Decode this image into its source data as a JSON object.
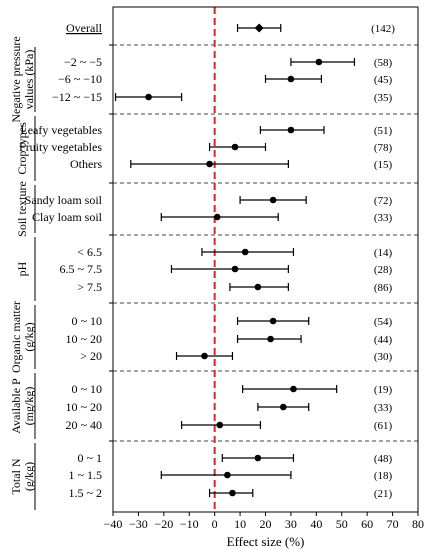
{
  "chart_data": {
    "type": "scatter",
    "subtype": "forest-plot",
    "xlabel": "Effect size (%)",
    "xlim": [
      -40,
      80
    ],
    "xticks": [
      -40,
      -30,
      -20,
      -10,
      0,
      10,
      20,
      30,
      40,
      50,
      60,
      70,
      80
    ],
    "reference_line": {
      "x": 0,
      "style": "dashed",
      "color": "#d62728"
    },
    "groups": [
      {
        "label": "",
        "rows": [
          {
            "label": "Overall",
            "mean": 17.5,
            "ci": [
              9,
              26
            ],
            "n": 142
          }
        ]
      },
      {
        "label": "Negative pressure values (kPa)",
        "rows": [
          {
            "label": "−2 ~ −5",
            "mean": 41,
            "ci": [
              30,
              55
            ],
            "n": 58
          },
          {
            "label": "−6 ~ −10",
            "mean": 30,
            "ci": [
              20,
              42
            ],
            "n": 45
          },
          {
            "label": "−12 ~ −15",
            "mean": -26,
            "ci": [
              -39,
              -13
            ],
            "n": 35
          }
        ]
      },
      {
        "label": "Crop types",
        "rows": [
          {
            "label": "Leafy vegetables",
            "mean": 30,
            "ci": [
              18,
              43
            ],
            "n": 51
          },
          {
            "label": "Fruity vegetables",
            "mean": 8,
            "ci": [
              -2,
              20
            ],
            "n": 78
          },
          {
            "label": "Others",
            "mean": -2,
            "ci": [
              -33,
              29
            ],
            "n": 15
          }
        ]
      },
      {
        "label": "Soil texture",
        "rows": [
          {
            "label": "Sandy loam soil",
            "mean": 23,
            "ci": [
              10,
              36
            ],
            "n": 72
          },
          {
            "label": "Clay loam soil",
            "mean": 1,
            "ci": [
              -21,
              25
            ],
            "n": 33
          }
        ]
      },
      {
        "label": "pH",
        "rows": [
          {
            "label": "< 6.5",
            "mean": 12,
            "ci": [
              -5,
              31
            ],
            "n": 14
          },
          {
            "label": "6.5 ~ 7.5",
            "mean": 8,
            "ci": [
              -17,
              29
            ],
            "n": 28
          },
          {
            "label": "> 7.5",
            "mean": 17,
            "ci": [
              6,
              29
            ],
            "n": 86
          }
        ]
      },
      {
        "label": "Organic matter (g/kg)",
        "rows": [
          {
            "label": "0 ~ 10",
            "mean": 23,
            "ci": [
              9,
              37
            ],
            "n": 54
          },
          {
            "label": "10 ~ 20",
            "mean": 22,
            "ci": [
              9,
              34
            ],
            "n": 44
          },
          {
            "label": "> 20",
            "mean": -4,
            "ci": [
              -15,
              7
            ],
            "n": 30
          }
        ]
      },
      {
        "label": "Available P (mg/kg)",
        "rows": [
          {
            "label": "0 ~ 10",
            "mean": 31,
            "ci": [
              11,
              48
            ],
            "n": 19
          },
          {
            "label": "10 ~ 20",
            "mean": 27,
            "ci": [
              17,
              37
            ],
            "n": 33
          },
          {
            "label": "20 ~ 40",
            "mean": 2,
            "ci": [
              -13,
              18
            ],
            "n": 61
          }
        ]
      },
      {
        "label": "Total N (g/kg)",
        "rows": [
          {
            "label": "0 ~ 1",
            "mean": 17,
            "ci": [
              3,
              31
            ],
            "n": 48
          },
          {
            "label": "1 ~ 1.5",
            "mean": 5,
            "ci": [
              -21,
              30
            ],
            "n": 18
          },
          {
            "label": "1.5 ~ 2",
            "mean": 7,
            "ci": [
              -2,
              15
            ],
            "n": 21
          }
        ]
      }
    ]
  }
}
